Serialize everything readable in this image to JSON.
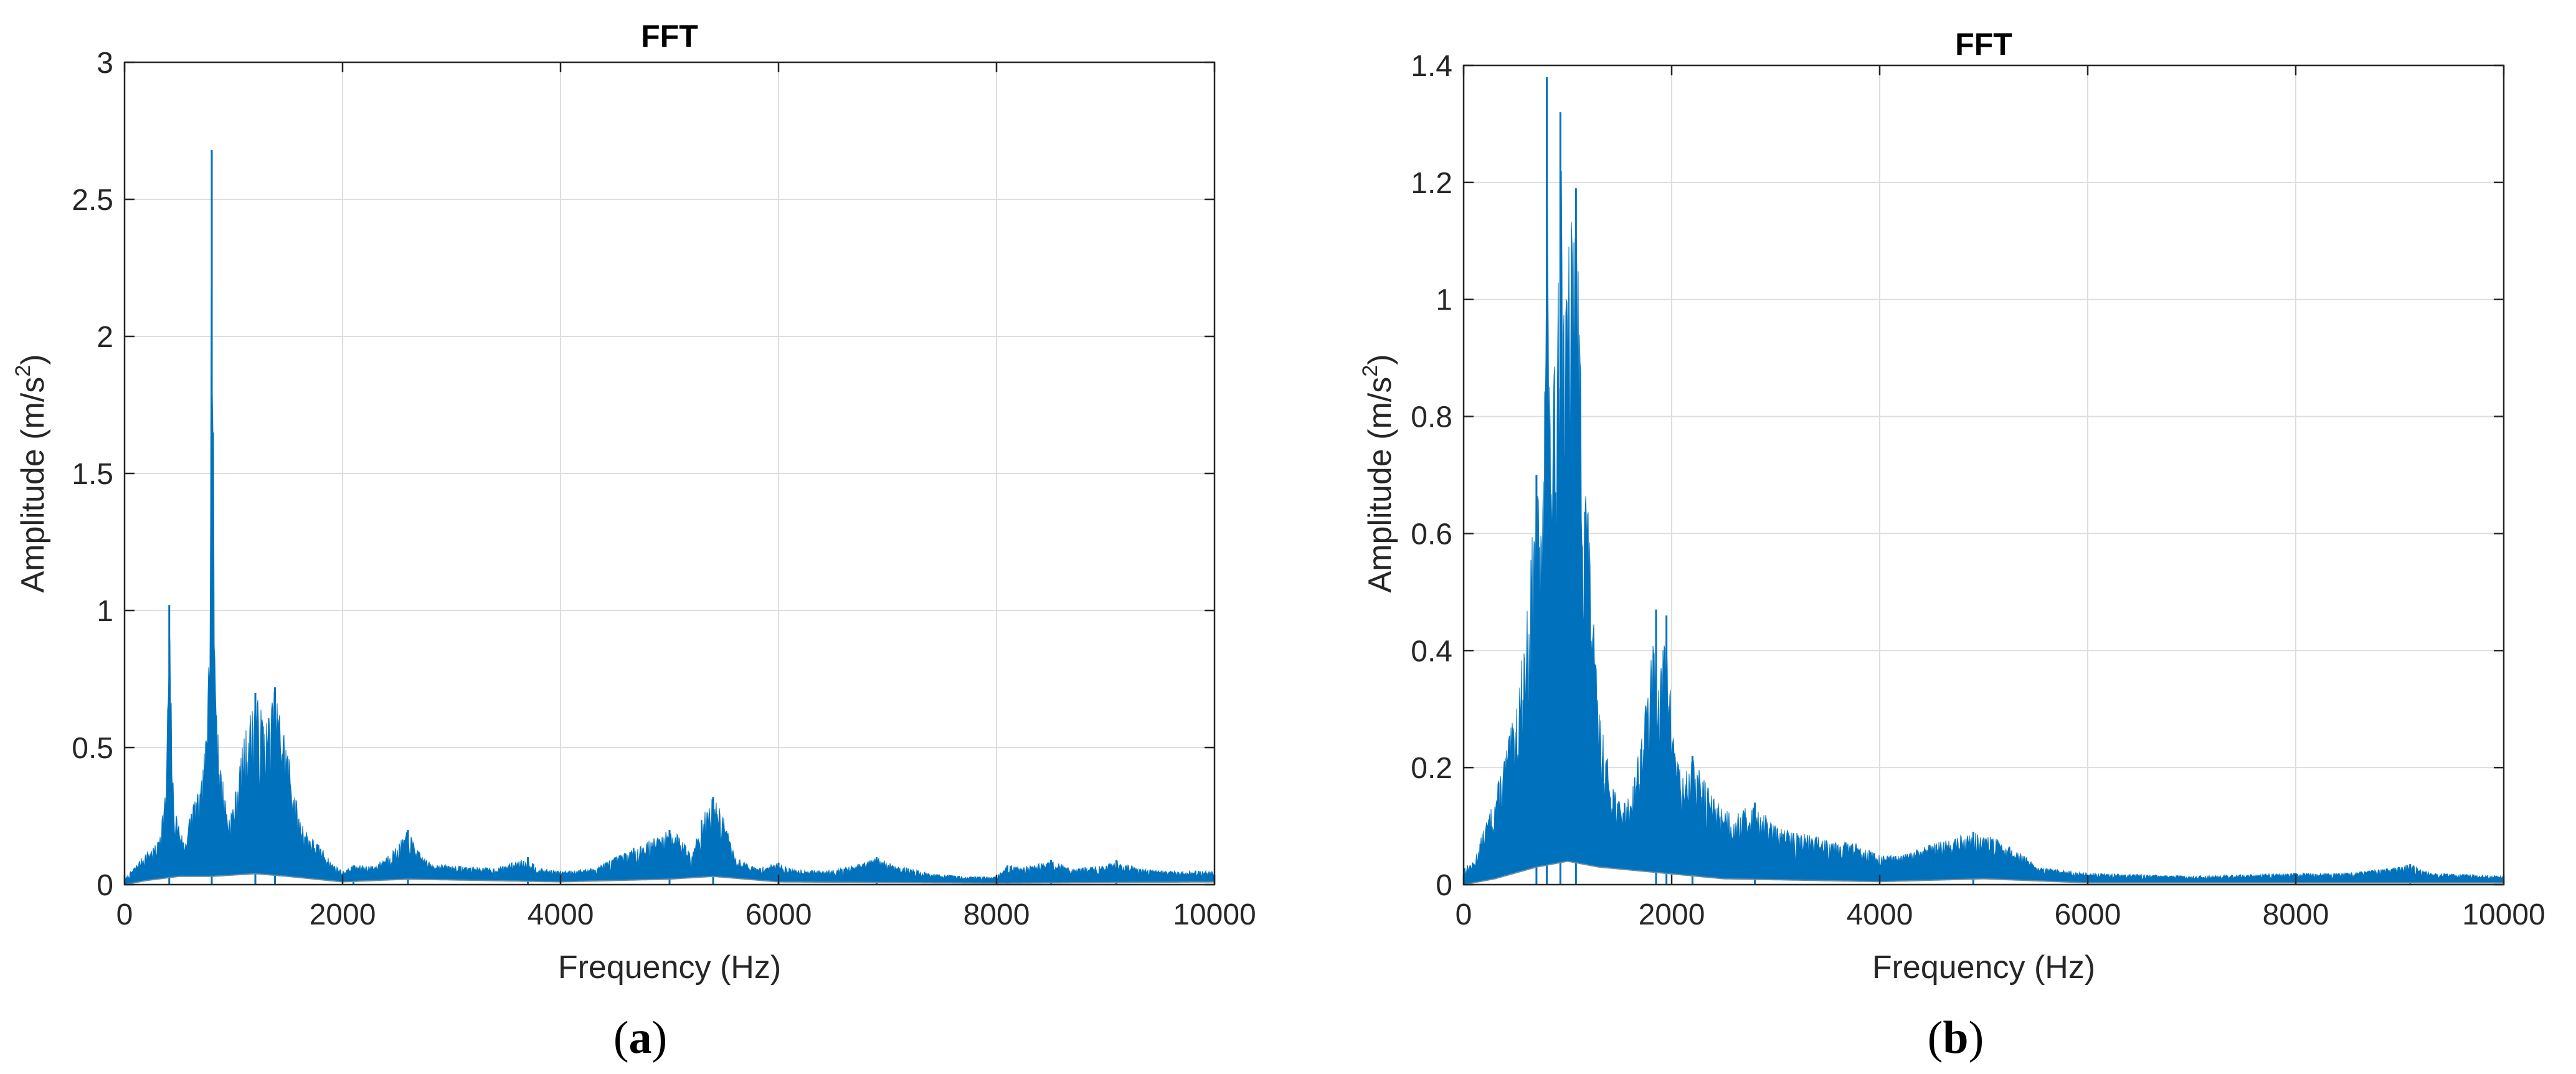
{
  "chart_data": [
    {
      "type": "line",
      "panel_label": "a",
      "title": "FFT",
      "xlabel": "Frequency (Hz)",
      "ylabel": "Amplitude (m/s",
      "ylabel_sup": "2",
      "ylabel_close": ")",
      "xlim": [
        0,
        10000
      ],
      "ylim": [
        0,
        3
      ],
      "xticks": [
        0,
        2000,
        4000,
        6000,
        8000,
        10000
      ],
      "yticks": [
        0,
        0.5,
        1,
        1.5,
        2,
        2.5,
        3
      ],
      "ytick_labels": [
        "0",
        "0.5",
        "1",
        "1.5",
        "2",
        "2.5",
        "3"
      ],
      "grid": true,
      "color": "#0072BD",
      "series": [
        {
          "envelope": [
            [
              0,
              0.02
            ],
            [
              200,
              0.12
            ],
            [
              300,
              0.15
            ],
            [
              380,
              0.35
            ],
            [
              410,
              1.02
            ],
            [
              450,
              0.3
            ],
            [
              550,
              0.15
            ],
            [
              620,
              0.3
            ],
            [
              700,
              0.35
            ],
            [
              760,
              0.6
            ],
            [
              800,
              2.68
            ],
            [
              830,
              0.88
            ],
            [
              870,
              0.48
            ],
            [
              950,
              0.25
            ],
            [
              1000,
              0.3
            ],
            [
              1100,
              0.55
            ],
            [
              1200,
              0.7
            ],
            [
              1300,
              0.6
            ],
            [
              1380,
              0.72
            ],
            [
              1450,
              0.6
            ],
            [
              1520,
              0.45
            ],
            [
              1600,
              0.25
            ],
            [
              1700,
              0.18
            ],
            [
              1800,
              0.14
            ],
            [
              1900,
              0.08
            ],
            [
              2000,
              0.05
            ],
            [
              2100,
              0.07
            ],
            [
              2300,
              0.07
            ],
            [
              2500,
              0.14
            ],
            [
              2600,
              0.2
            ],
            [
              2700,
              0.12
            ],
            [
              2800,
              0.08
            ],
            [
              3000,
              0.07
            ],
            [
              3400,
              0.06
            ],
            [
              3700,
              0.1
            ],
            [
              3800,
              0.06
            ],
            [
              4000,
              0.05
            ],
            [
              4300,
              0.06
            ],
            [
              4500,
              0.1
            ],
            [
              4700,
              0.14
            ],
            [
              4900,
              0.18
            ],
            [
              5000,
              0.2
            ],
            [
              5100,
              0.18
            ],
            [
              5200,
              0.12
            ],
            [
              5300,
              0.25
            ],
            [
              5400,
              0.32
            ],
            [
              5500,
              0.25
            ],
            [
              5600,
              0.1
            ],
            [
              5800,
              0.06
            ],
            [
              6000,
              0.08
            ],
            [
              6100,
              0.06
            ],
            [
              6400,
              0.05
            ],
            [
              6700,
              0.07
            ],
            [
              6900,
              0.1
            ],
            [
              7100,
              0.07
            ],
            [
              7400,
              0.04
            ],
            [
              7700,
              0.03
            ],
            [
              8000,
              0.03
            ],
            [
              8100,
              0.07
            ],
            [
              8300,
              0.07
            ],
            [
              8500,
              0.09
            ],
            [
              8700,
              0.06
            ],
            [
              9000,
              0.07
            ],
            [
              9100,
              0.09
            ],
            [
              9300,
              0.06
            ],
            [
              9600,
              0.05
            ],
            [
              10000,
              0.05
            ]
          ],
          "floor": [
            [
              0,
              0.0
            ],
            [
              200,
              0.015
            ],
            [
              500,
              0.03
            ],
            [
              800,
              0.03
            ],
            [
              1200,
              0.04
            ],
            [
              1500,
              0.03
            ],
            [
              2000,
              0.01
            ],
            [
              2600,
              0.02
            ],
            [
              4000,
              0.01
            ],
            [
              5000,
              0.02
            ],
            [
              5400,
              0.03
            ],
            [
              6000,
              0.01
            ],
            [
              8000,
              0.005
            ],
            [
              10000,
              0.01
            ]
          ]
        }
      ]
    },
    {
      "type": "line",
      "panel_label": "b",
      "title": "FFT",
      "xlabel": "Frequency (Hz)",
      "ylabel": "Amplitude (m/s",
      "ylabel_sup": "2",
      "ylabel_close": ")",
      "xlim": [
        0,
        10000
      ],
      "ylim": [
        0,
        1.4
      ],
      "xticks": [
        0,
        2000,
        4000,
        6000,
        8000,
        10000
      ],
      "yticks": [
        0,
        0.2,
        0.4,
        0.6,
        0.8,
        1,
        1.2,
        1.4
      ],
      "ytick_labels": [
        "0",
        "0.2",
        "0.4",
        "0.6",
        "0.8",
        "1",
        "1.2",
        "1.4"
      ],
      "grid": true,
      "color": "#0072BD",
      "series": [
        {
          "envelope": [
            [
              0,
              0.03
            ],
            [
              100,
              0.04
            ],
            [
              200,
              0.1
            ],
            [
              300,
              0.15
            ],
            [
              400,
              0.23
            ],
            [
              500,
              0.3
            ],
            [
              600,
              0.45
            ],
            [
              700,
              0.7
            ],
            [
              750,
              0.6
            ],
            [
              780,
              1.1
            ],
            [
              800,
              1.38
            ],
            [
              830,
              0.8
            ],
            [
              880,
              0.9
            ],
            [
              930,
              1.32
            ],
            [
              980,
              1.0
            ],
            [
              1020,
              1.13
            ],
            [
              1080,
              1.19
            ],
            [
              1130,
              0.9
            ],
            [
              1200,
              0.65
            ],
            [
              1250,
              0.45
            ],
            [
              1300,
              0.3
            ],
            [
              1400,
              0.2
            ],
            [
              1500,
              0.14
            ],
            [
              1600,
              0.15
            ],
            [
              1700,
              0.25
            ],
            [
              1800,
              0.38
            ],
            [
              1850,
              0.47
            ],
            [
              1900,
              0.38
            ],
            [
              1950,
              0.46
            ],
            [
              2000,
              0.3
            ],
            [
              2100,
              0.18
            ],
            [
              2200,
              0.22
            ],
            [
              2400,
              0.15
            ],
            [
              2600,
              0.12
            ],
            [
              2800,
              0.14
            ],
            [
              3000,
              0.1
            ],
            [
              3200,
              0.09
            ],
            [
              3500,
              0.08
            ],
            [
              3800,
              0.07
            ],
            [
              4000,
              0.05
            ],
            [
              4200,
              0.05
            ],
            [
              4500,
              0.07
            ],
            [
              4700,
              0.08
            ],
            [
              4900,
              0.09
            ],
            [
              5100,
              0.08
            ],
            [
              5300,
              0.06
            ],
            [
              5400,
              0.05
            ],
            [
              5500,
              0.03
            ],
            [
              6000,
              0.02
            ],
            [
              7000,
              0.015
            ],
            [
              8000,
              0.02
            ],
            [
              8500,
              0.02
            ],
            [
              9000,
              0.03
            ],
            [
              9100,
              0.035
            ],
            [
              9300,
              0.02
            ],
            [
              10000,
              0.015
            ]
          ],
          "floor": [
            [
              0,
              0.0
            ],
            [
              300,
              0.01
            ],
            [
              700,
              0.03
            ],
            [
              1000,
              0.04
            ],
            [
              1300,
              0.03
            ],
            [
              1900,
              0.02
            ],
            [
              2500,
              0.01
            ],
            [
              4000,
              0.005
            ],
            [
              5000,
              0.01
            ],
            [
              6000,
              0.003
            ],
            [
              10000,
              0.003
            ]
          ]
        }
      ]
    }
  ]
}
